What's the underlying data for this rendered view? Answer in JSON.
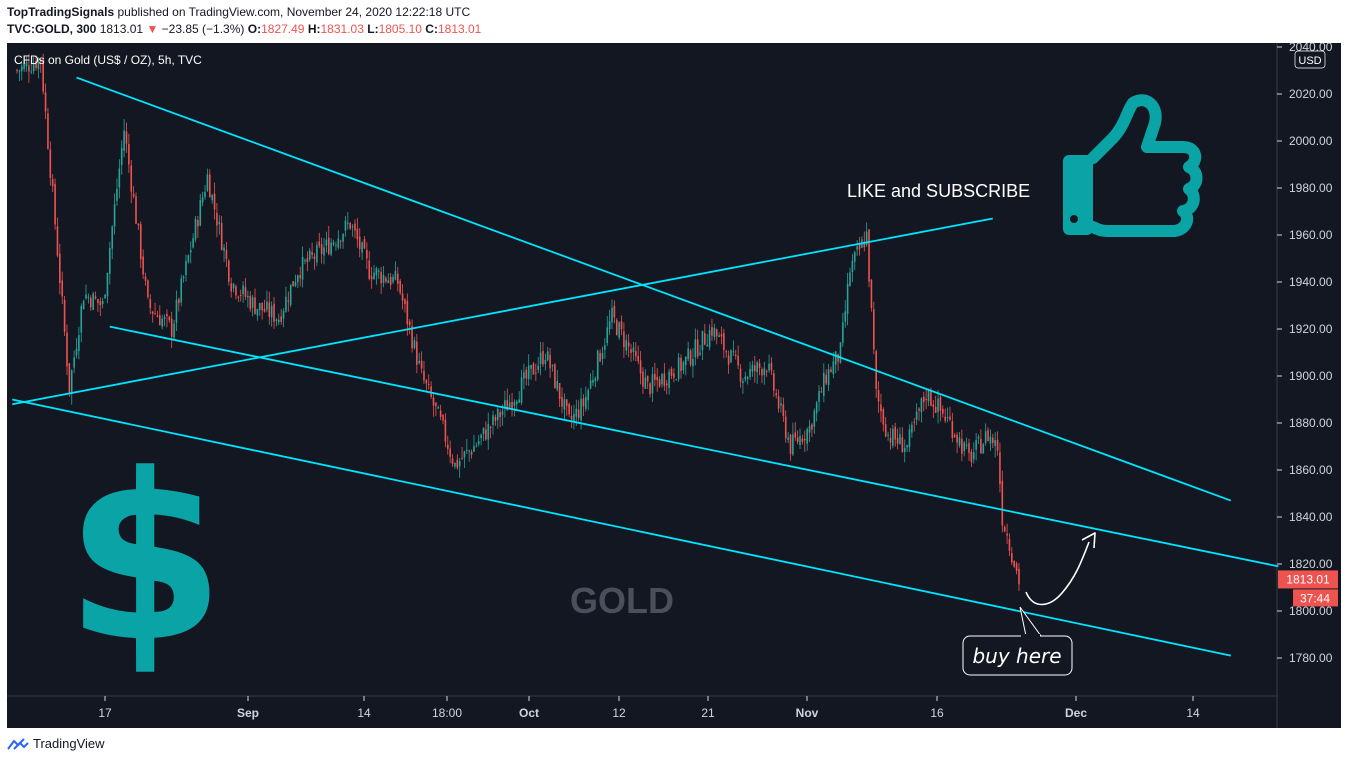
{
  "header": {
    "author": "TopTradingSignals",
    "published_text": "published on TradingView.com, November 24, 2020 12:22:18 UTC",
    "symbol": "TVC:GOLD, 300",
    "last": "1813.01",
    "change_arrow": "▼",
    "change": "−23.85 (−1.3%)",
    "o_label": "O:",
    "o_value": "1827.49",
    "h_label": "H:",
    "h_value": "1831.03",
    "l_label": "L:",
    "l_value": "1805.10",
    "c_label": "C:",
    "c_value": "1813.01"
  },
  "chart_data": {
    "type": "candlestick",
    "title": "CFDs on Gold (US$ / OZ), 5h, TVC",
    "watermark": "GOLD",
    "currency": "USD",
    "y_ticks": [
      1780,
      1800,
      1820,
      1840,
      1860,
      1880,
      1900,
      1920,
      1940,
      1960,
      1980,
      2000,
      2020,
      2040
    ],
    "y_tick_labels": [
      "1780.00",
      "1800.00",
      "1820.00",
      "1840.00",
      "1860.00",
      "1880.00",
      "1900.00",
      "1920.00",
      "1940.00",
      "1960.00",
      "1980.00",
      "2000.00",
      "2020.00",
      "2040.00"
    ],
    "ylim": [
      1765,
      2045
    ],
    "x_ticks": [
      "17",
      "Sep",
      "14",
      "18:00",
      "Oct",
      "12",
      "21",
      "Nov",
      "16",
      "Dec",
      "14"
    ],
    "x_tick_bold": [
      false,
      true,
      false,
      false,
      true,
      false,
      false,
      true,
      false,
      true,
      false
    ],
    "price_path": [
      {
        "i": 0,
        "p": 2030
      },
      {
        "i": 10,
        "p": 2035
      },
      {
        "i": 22,
        "p": 1895
      },
      {
        "i": 28,
        "p": 1935
      },
      {
        "i": 36,
        "p": 1930
      },
      {
        "i": 45,
        "p": 2005
      },
      {
        "i": 55,
        "p": 1930
      },
      {
        "i": 65,
        "p": 1920
      },
      {
        "i": 80,
        "p": 1985
      },
      {
        "i": 90,
        "p": 1940
      },
      {
        "i": 100,
        "p": 1930
      },
      {
        "i": 110,
        "p": 1925
      },
      {
        "i": 118,
        "p": 1945
      },
      {
        "i": 130,
        "p": 1955
      },
      {
        "i": 140,
        "p": 1965
      },
      {
        "i": 148,
        "p": 1945
      },
      {
        "i": 160,
        "p": 1940
      },
      {
        "i": 170,
        "p": 1900
      },
      {
        "i": 178,
        "p": 1880
      },
      {
        "i": 184,
        "p": 1862
      },
      {
        "i": 192,
        "p": 1870
      },
      {
        "i": 200,
        "p": 1880
      },
      {
        "i": 210,
        "p": 1893
      },
      {
        "i": 222,
        "p": 1910
      },
      {
        "i": 232,
        "p": 1880
      },
      {
        "i": 238,
        "p": 1888
      },
      {
        "i": 250,
        "p": 1925
      },
      {
        "i": 258,
        "p": 1910
      },
      {
        "i": 265,
        "p": 1895
      },
      {
        "i": 280,
        "p": 1905
      },
      {
        "i": 292,
        "p": 1920
      },
      {
        "i": 305,
        "p": 1900
      },
      {
        "i": 315,
        "p": 1905
      },
      {
        "i": 325,
        "p": 1870
      },
      {
        "i": 333,
        "p": 1878
      },
      {
        "i": 340,
        "p": 1900
      },
      {
        "i": 346,
        "p": 1910
      },
      {
        "i": 350,
        "p": 1945
      },
      {
        "i": 357,
        "p": 1960
      },
      {
        "i": 361,
        "p": 1892
      },
      {
        "i": 366,
        "p": 1875
      },
      {
        "i": 374,
        "p": 1870
      },
      {
        "i": 382,
        "p": 1893
      },
      {
        "i": 392,
        "p": 1880
      },
      {
        "i": 400,
        "p": 1865
      },
      {
        "i": 408,
        "p": 1875
      },
      {
        "i": 412,
        "p": 1870
      },
      {
        "i": 414,
        "p": 1840
      },
      {
        "i": 418,
        "p": 1825
      },
      {
        "i": 421,
        "p": 1813
      }
    ],
    "trendlines": [
      {
        "from": {
          "i": 25,
          "p": 2027
        },
        "to": {
          "i": 510,
          "p": 1847
        }
      },
      {
        "from": {
          "i": -2,
          "p": 1888
        },
        "to": {
          "i": 410,
          "p": 1967
        }
      },
      {
        "from": {
          "i": 39,
          "p": 1921
        },
        "to": {
          "i": 530,
          "p": 1819
        }
      },
      {
        "from": {
          "i": -2,
          "p": 1890
        },
        "to": {
          "i": 510,
          "p": 1781
        }
      }
    ],
    "last_price_label": "1813.01",
    "countdown_label": "37:44",
    "annotations": {
      "cta": "LIKE and SUBSCRIBE",
      "callout": "buy here",
      "dollar": "$"
    },
    "colors": {
      "background": "#131722",
      "up": "#26a69a",
      "down": "#ef5350",
      "trendline": "#00e5ff",
      "icon": "#0aa3a6",
      "watermark": "#4b4f5c"
    }
  },
  "footer": {
    "brand": "TradingView"
  }
}
